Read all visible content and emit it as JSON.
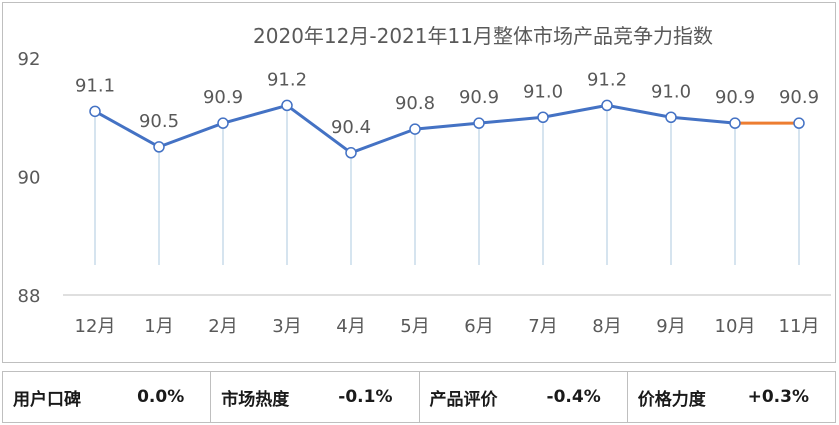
{
  "chart_data": {
    "type": "line",
    "title": "2020年12月-2021年11月整体市场产品竞争力指数",
    "categories": [
      "12月",
      "1月",
      "2月",
      "3月",
      "4月",
      "5月",
      "6月",
      "7月",
      "8月",
      "9月",
      "10月",
      "11月"
    ],
    "series": [
      {
        "values": [
          91.1,
          90.5,
          90.9,
          91.2,
          90.4,
          90.8,
          90.9,
          91.0,
          91.2,
          91.0,
          90.9,
          90.9
        ]
      }
    ],
    "data_labels": [
      "91.1",
      "90.5",
      "90.9",
      "91.2",
      "90.4",
      "90.8",
      "90.9",
      "91.0",
      "91.2",
      "91.0",
      "90.9",
      "90.9"
    ],
    "ylim": [
      88,
      92
    ],
    "yticks": [
      "92",
      "90",
      "88"
    ],
    "colors": {
      "line": "#4472c4",
      "last_segment": "#ed7d31",
      "drop_line": "#c9dcea",
      "axis": "#bfbfbf"
    },
    "grid": false
  },
  "footer": {
    "metrics": [
      {
        "label": "用户口碑",
        "value": "0.0%"
      },
      {
        "label": "市场热度",
        "value": "-0.1%"
      },
      {
        "label": "产品评价",
        "value": "-0.4%"
      },
      {
        "label": "价格力度",
        "value": "+0.3%"
      }
    ]
  }
}
